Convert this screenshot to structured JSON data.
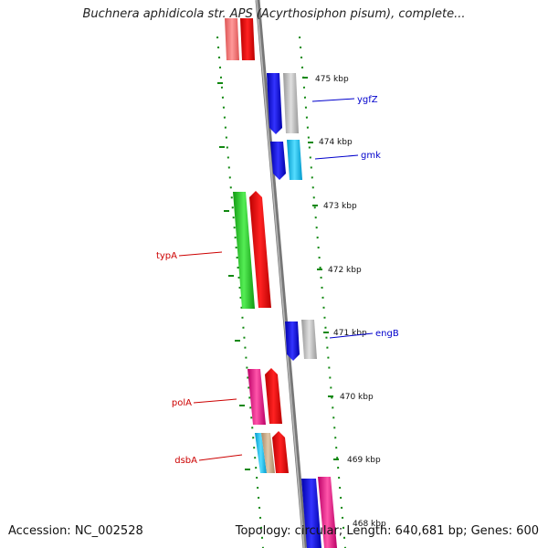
{
  "title": "Buchnera aphidicola str. APS (Acyrthosiphon pisum), complete...",
  "accession": "Accession: NC_002528",
  "topology": "Topology: circular; Length: 640,681 bp; Genes: 600",
  "ticks": [
    "475 kbp",
    "474 kbp",
    "473 kbp",
    "472 kbp",
    "471 kbp",
    "470 kbp",
    "469 kbp",
    "468 kbp"
  ],
  "genes": [
    {
      "label": "ygfZ",
      "color": "#0000cc"
    },
    {
      "label": "gmk",
      "color": "#0000cc"
    },
    {
      "label": "engB",
      "color": "#0000cc"
    },
    {
      "label": "typA",
      "color": "#cc0000"
    },
    {
      "label": "polA",
      "color": "#cc0000"
    },
    {
      "label": "dsbA",
      "color": "#cc0000"
    }
  ],
  "colors": {
    "blue_cds": "#0000ee",
    "red_cds": "#ee0000",
    "gray_cds": "#b8b8b8",
    "cyan_cds": "#00bbee",
    "green_cds": "#22cc22",
    "pink_cds": "#ee1188",
    "backbone": "#888888",
    "dots": "#118811"
  }
}
